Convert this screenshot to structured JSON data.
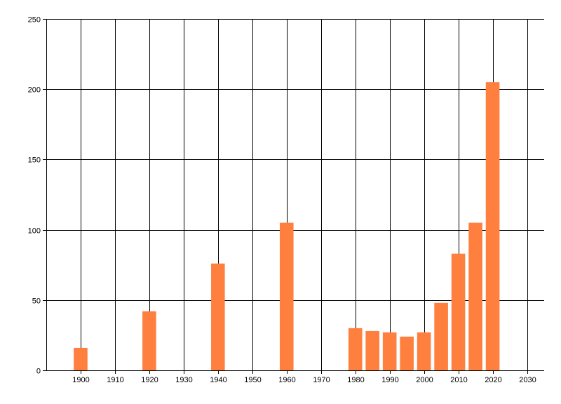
{
  "chart_data": {
    "type": "bar",
    "x": [
      1900,
      1920,
      1940,
      1960,
      1980,
      1985,
      1990,
      1995,
      2000,
      2005,
      2010,
      2015,
      2020
    ],
    "values": [
      16,
      42,
      76,
      105,
      30,
      28,
      27,
      24,
      27,
      48,
      83,
      105,
      205
    ],
    "xlim": [
      1890,
      2035
    ],
    "ylim": [
      0,
      250
    ],
    "x_ticks": [
      1900,
      1910,
      1920,
      1930,
      1940,
      1950,
      1960,
      1970,
      1980,
      1990,
      2000,
      2010,
      2020,
      2030
    ],
    "y_ticks": [
      0,
      50,
      100,
      150,
      200,
      250
    ],
    "x_tick_labels": [
      "1900",
      "1910",
      "1920",
      "1930",
      "1940",
      "1950",
      "1960",
      "1970",
      "1980",
      "1990",
      "2000",
      "2010",
      "2020",
      "2030"
    ],
    "y_tick_labels": [
      "0",
      "50",
      "100",
      "150",
      "200",
      "250"
    ],
    "grid": true,
    "legend": "none",
    "title": "",
    "xlabel": "",
    "ylabel": "",
    "bar_width_years": 4,
    "colors": {
      "bar": "#ff7f3f",
      "grid": "#000000",
      "axis": "#000000",
      "background": "#ffffff"
    }
  }
}
